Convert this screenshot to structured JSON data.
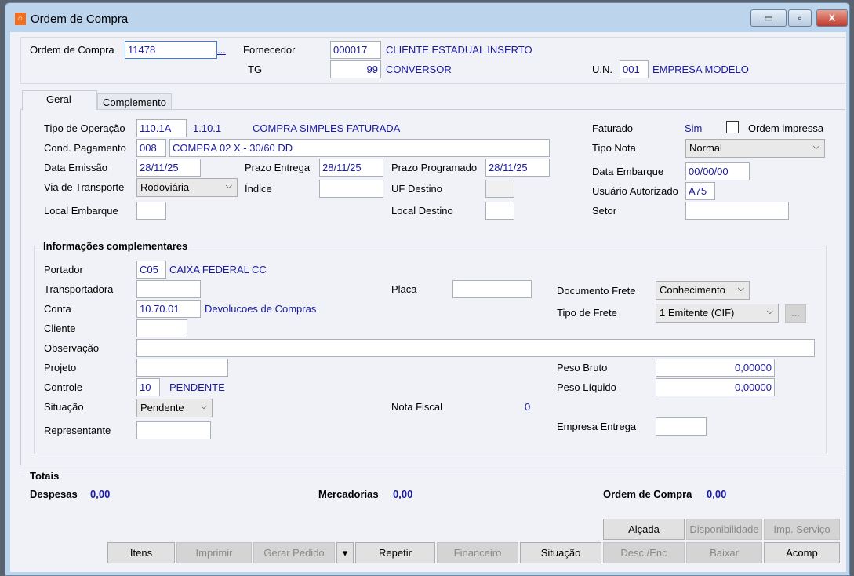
{
  "window": {
    "title": "Ordem de Compra",
    "minimize": "▭",
    "restore": "▫",
    "close": "X"
  },
  "header": {
    "ordem_label": "Ordem de Compra",
    "ordem_value": "11478",
    "ordem_lookup": "...",
    "fornecedor_label": "Fornecedor",
    "fornecedor_code": "000017",
    "fornecedor_name": "CLIENTE ESTADUAL INSERTO",
    "tg_label": "TG",
    "tg_code": "99",
    "tg_name": "CONVERSOR",
    "un_label": "U.N.",
    "un_code": "001",
    "un_name": "EMPRESA MODELO"
  },
  "tabs": [
    {
      "label": "Geral"
    },
    {
      "label": "Complemento"
    }
  ],
  "geral": {
    "tipo_operacao_label": "Tipo de Operação",
    "tipo_operacao_code": "110.1A",
    "tipo_operacao_num": "1.10.1",
    "tipo_operacao_desc": "COMPRA SIMPLES FATURADA",
    "faturado_label": "Faturado",
    "faturado_value": "Sim",
    "ordem_impressa_label": "Ordem impressa",
    "ordem_impressa_checked": false,
    "cond_pag_label": "Cond. Pagamento",
    "cond_pag_code": "008",
    "cond_pag_desc": "COMPRA 02 X - 30/60 DD",
    "tipo_nota_label": "Tipo Nota",
    "tipo_nota_value": "Normal",
    "data_emissao_label": "Data Emissão",
    "data_emissao_value": "28/11/25",
    "prazo_entrega_label": "Prazo Entrega",
    "prazo_entrega_value": "28/11/25",
    "prazo_prog_label": "Prazo Programado",
    "prazo_prog_value": "28/11/25",
    "data_embarque_label": "Data Embarque",
    "data_embarque_value": "00/00/00",
    "via_transporte_label": "Via de Transporte",
    "via_transporte_value": "Rodoviária",
    "indice_label": "Índice",
    "indice_value": "",
    "uf_destino_label": "UF Destino",
    "uf_destino_value": "",
    "usuario_label": "Usuário Autorizado",
    "usuario_value": "A75",
    "local_embarque_label": "Local Embarque",
    "local_embarque_value": "",
    "local_destino_label": "Local Destino",
    "local_destino_value": "",
    "setor_label": "Setor",
    "setor_value": ""
  },
  "info": {
    "title": "Informações complementares",
    "portador_label": "Portador",
    "portador_code": "C05",
    "portador_name": "CAIXA FEDERAL CC",
    "transportadora_label": "Transportadora",
    "transportadora_value": "",
    "placa_label": "Placa",
    "placa_value": "",
    "doc_frete_label": "Documento Frete",
    "doc_frete_value": "Conhecimento",
    "conta_label": "Conta",
    "conta_code": "10.70.01",
    "conta_name": "Devolucoes de Compras",
    "tipo_frete_label": "Tipo de Frete",
    "tipo_frete_value": "1 Emitente (CIF)",
    "tipo_frete_more": "...",
    "cliente_label": "Cliente",
    "cliente_value": "",
    "obs_label": "Observação",
    "obs_value": "",
    "projeto_label": "Projeto",
    "projeto_value": "",
    "peso_bruto_label": "Peso Bruto",
    "peso_bruto_value": "0,00000",
    "controle_label": "Controle",
    "controle_code": "10",
    "controle_desc": "PENDENTE",
    "peso_liquido_label": "Peso Líquido",
    "peso_liquido_value": "0,00000",
    "situacao_label": "Situação",
    "situacao_value": "Pendente",
    "nota_fiscal_label": "Nota Fiscal",
    "nota_fiscal_value": "0",
    "representante_label": "Representante",
    "representante_value": "",
    "empresa_entrega_label": "Empresa Entrega",
    "empresa_entrega_value": ""
  },
  "totais": {
    "title": "Totais",
    "despesas_label": "Despesas",
    "despesas_value": "0,00",
    "mercadorias_label": "Mercadorias",
    "mercadorias_value": "0,00",
    "ordem_label": "Ordem de Compra",
    "ordem_value": "0,00"
  },
  "buttons": {
    "alcada": "Alçada",
    "disponibilidade": "Disponibilidade",
    "imp_servico": "Imp. Serviço",
    "itens": "Itens",
    "imprimir": "Imprimir",
    "gerar_pedido": "Gerar Pedido",
    "dropdown": "▾",
    "repetir": "Repetir",
    "financeiro": "Financeiro",
    "situacao": "Situação",
    "desc_enc": "Desc./Enc",
    "baixar": "Baixar",
    "acomp": "Acomp"
  }
}
